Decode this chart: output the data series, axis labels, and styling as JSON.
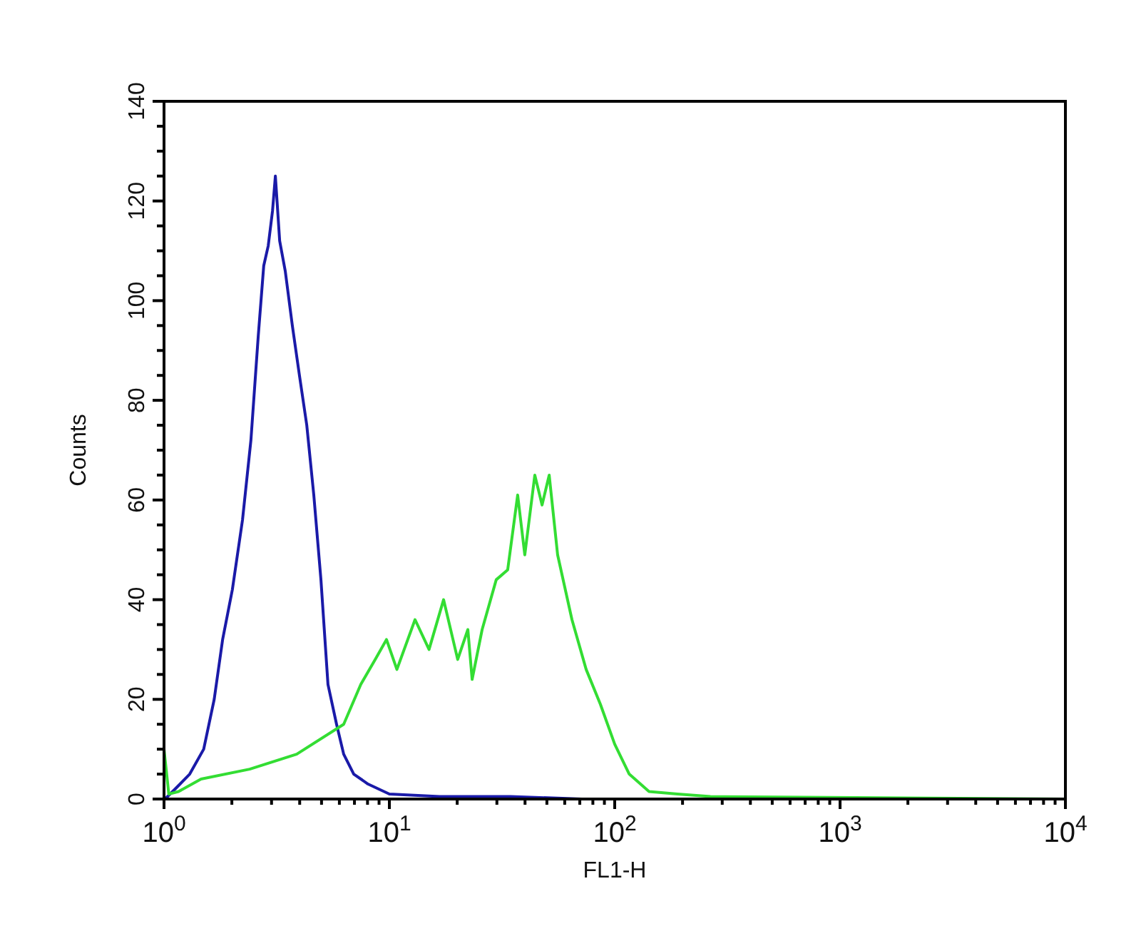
{
  "chart_data": {
    "type": "line",
    "xlabel": "FL1-H",
    "ylabel": "Counts",
    "log": "x",
    "grid": false,
    "line_style": "solid",
    "xlim": [
      1,
      10000
    ],
    "ylim": [
      0,
      140
    ],
    "xticks": [
      {
        "value": 1,
        "label": "10$^{0}$"
      },
      {
        "value": 2,
        "label": null
      },
      {
        "value": 3,
        "label": null
      },
      {
        "value": 4,
        "label": null
      },
      {
        "value": 5,
        "label": null
      },
      {
        "value": 6,
        "label": null
      },
      {
        "value": 7,
        "label": null
      },
      {
        "value": 8,
        "label": null
      },
      {
        "value": 9,
        "label": null
      },
      {
        "value": 10,
        "label": "10$^{1}$"
      },
      {
        "value": 20,
        "label": null
      },
      {
        "value": 30,
        "label": null
      },
      {
        "value": 40,
        "label": null
      },
      {
        "value": 50,
        "label": null
      },
      {
        "value": 60,
        "label": null
      },
      {
        "value": 70,
        "label": null
      },
      {
        "value": 80,
        "label": null
      },
      {
        "value": 90,
        "label": null
      },
      {
        "value": 100,
        "label": "10$^{2}$"
      },
      {
        "value": 200,
        "label": null
      },
      {
        "value": 300,
        "label": null
      },
      {
        "value": 400,
        "label": null
      },
      {
        "value": 500,
        "label": null
      },
      {
        "value": 600,
        "label": null
      },
      {
        "value": 700,
        "label": null
      },
      {
        "value": 800,
        "label": null
      },
      {
        "value": 900,
        "label": null
      },
      {
        "value": 1000,
        "label": "10$^{3}$"
      },
      {
        "value": 2000,
        "label": null
      },
      {
        "value": 3000,
        "label": null
      },
      {
        "value": 4000,
        "label": null
      },
      {
        "value": 5000,
        "label": null
      },
      {
        "value": 6000,
        "label": null
      },
      {
        "value": 7000,
        "label": null
      },
      {
        "value": 8000,
        "label": null
      },
      {
        "value": 9000,
        "label": null
      },
      {
        "value": 10000,
        "label": "10$^{4}$"
      }
    ],
    "yticks": [
      0,
      {
        "value": 5,
        "label": null
      },
      {
        "value": 10,
        "label": null
      },
      {
        "value": 15,
        "label": null
      },
      20,
      {
        "value": 25,
        "label": null
      },
      {
        "value": 30,
        "label": null
      },
      {
        "value": 35,
        "label": null
      },
      40,
      {
        "value": 45,
        "label": null
      },
      {
        "value": 50,
        "label": null
      },
      {
        "value": 55,
        "label": null
      },
      60,
      {
        "value": 65,
        "label": null
      },
      {
        "value": 70,
        "label": null
      },
      {
        "value": 75,
        "label": null
      },
      80,
      {
        "value": 85,
        "label": null
      },
      {
        "value": 90,
        "label": null
      },
      {
        "value": 95,
        "label": null
      },
      100,
      {
        "value": 105,
        "label": null
      },
      {
        "value": 110,
        "label": null
      },
      {
        "value": 115,
        "label": null
      },
      120,
      {
        "value": 125,
        "label": null
      },
      {
        "value": 130,
        "label": null
      },
      {
        "value": 135,
        "label": null
      },
      140
    ],
    "series": [
      {
        "color": "#1a1aa8",
        "x": [
          1.01,
          1.12,
          1.3,
          1.5,
          1.67,
          1.82,
          2.01,
          2.23,
          2.43,
          2.62,
          2.77,
          2.9,
          3.03,
          3.12,
          3.26,
          3.45,
          3.71,
          3.99,
          4.3,
          4.62,
          4.97,
          5.34,
          5.83,
          6.27,
          6.95,
          8.04,
          10,
          16.7,
          34.5,
          71.5,
          10000
        ],
        "values": [
          0,
          2,
          5,
          10,
          20,
          32,
          42,
          56,
          72,
          93,
          107,
          111,
          118,
          125,
          112,
          106,
          95,
          85,
          75,
          61,
          44,
          23,
          15,
          9,
          5,
          3,
          1,
          0.5,
          0.5,
          0,
          0
        ]
      },
      {
        "color": "#33dd33",
        "x": [
          1,
          1.05,
          1.16,
          1.46,
          2.4,
          3.88,
          6.27,
          7.47,
          8.65,
          9.71,
          10.8,
          13,
          15,
          17.4,
          20.1,
          22.3,
          23.3,
          25.8,
          29.8,
          33.5,
          37.1,
          39.9,
          44.2,
          47.6,
          51.2,
          55.8,
          64.6,
          74.7,
          86.4,
          100,
          116,
          142,
          190,
          266,
          10000
        ],
        "values": [
          10,
          1,
          1.5,
          4,
          6,
          9,
          15,
          23,
          28,
          32,
          26,
          36,
          30,
          40,
          28,
          34,
          24,
          34,
          44,
          46,
          61,
          49,
          65,
          59,
          65,
          49,
          36,
          26,
          19,
          11,
          5,
          1.5,
          1,
          0.5,
          0
        ]
      }
    ]
  }
}
